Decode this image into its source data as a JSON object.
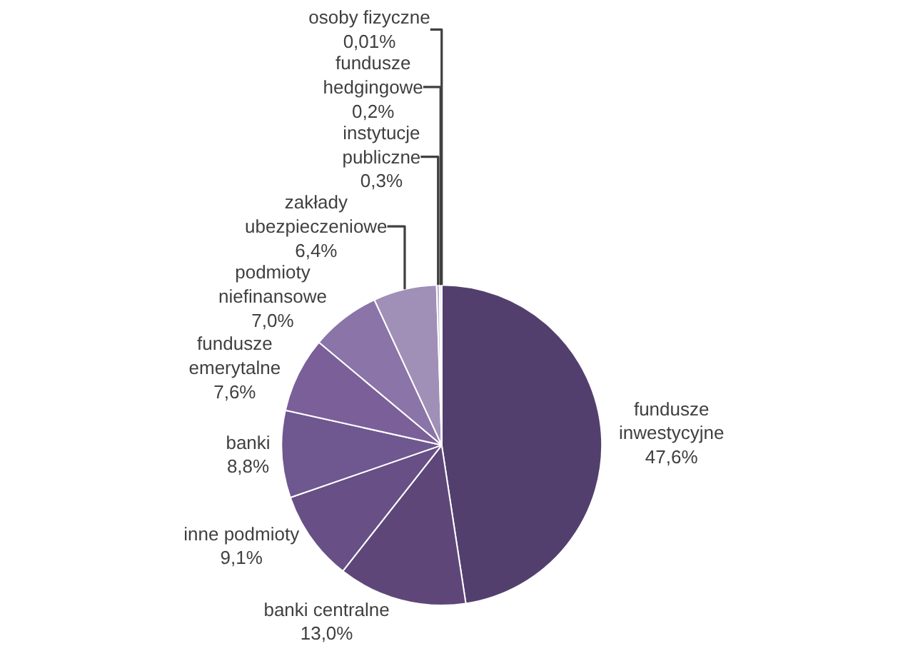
{
  "chart_data": {
    "type": "pie",
    "categories": [
      "fundusze inwestycyjne",
      "banki centralne",
      "inne podmioty",
      "banki",
      "fundusze emerytalne",
      "podmioty niefinansowe",
      "zakłady ubezpieczeniowe",
      "instytucje publiczne",
      "fundusze hedgingowe",
      "osoby fizyczne"
    ],
    "values": [
      47.6,
      13.0,
      9.1,
      8.8,
      7.6,
      7.0,
      6.4,
      0.3,
      0.2,
      0.01
    ],
    "value_labels": [
      "47,6%",
      "13,0%",
      "9,1%",
      "8,8%",
      "7,6%",
      "7,0%",
      "6,4%",
      "0,3%",
      "0,2%",
      "0,01%"
    ],
    "colors": [
      "#533f6e",
      "#5e4778",
      "#684f86",
      "#6f5790",
      "#7b5f99",
      "#8b74a8",
      "#a08fb6",
      "#c0b3d2",
      "#d3cae0",
      "#e3dced"
    ],
    "legend": false
  }
}
